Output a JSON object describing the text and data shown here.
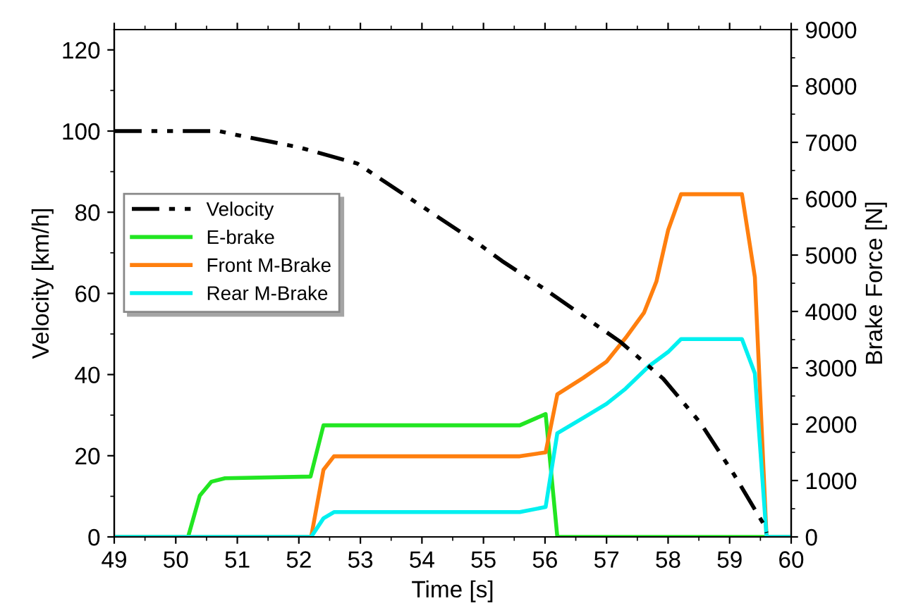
{
  "chart_data": {
    "type": "line",
    "xlabel": "Time [s]",
    "ylabel": "Velocity [km/h]",
    "y2label": "Brake Force [N]",
    "xlim": [
      49,
      60
    ],
    "xticks": [
      49,
      50,
      51,
      52,
      53,
      54,
      55,
      56,
      57,
      58,
      59,
      60
    ],
    "ylim": [
      0,
      125
    ],
    "yticks": [
      0,
      20,
      40,
      60,
      80,
      100,
      120
    ],
    "y2lim": [
      0,
      9000
    ],
    "y2ticks": [
      0,
      1000,
      2000,
      3000,
      4000,
      5000,
      6000,
      7000,
      8000,
      9000
    ],
    "grid": false,
    "legend": "left",
    "series": [
      {
        "name": "Velocity",
        "color": "#000000",
        "line_style": "dashdotdot",
        "x": [
          49,
          50.7,
          51,
          52,
          52.95,
          54.94,
          55.3,
          56,
          57.23,
          57.92,
          58.53,
          59.07,
          59.57,
          59.6
        ],
        "values": [
          100,
          100,
          99,
          96,
          92,
          72,
          68,
          61,
          48,
          39,
          28,
          15.4,
          2.7,
          1
        ]
      },
      {
        "name": "E-brake",
        "color": "#22e622",
        "axis": "y2",
        "x": [
          49,
          50.2,
          50.39,
          50.58,
          50.8,
          52.19,
          52.4,
          55.59,
          56.01,
          56.2,
          60
        ],
        "values": [
          0,
          0,
          730,
          980,
          1040,
          1070,
          1980,
          1980,
          2180,
          0,
          0
        ]
      },
      {
        "name": "Front M-Brake",
        "color": "#ff7f0e",
        "axis": "y2",
        "x": [
          49,
          52.2,
          52.4,
          52.57,
          55.59,
          56.01,
          56.2,
          56.62,
          57.0,
          57.31,
          57.61,
          57.81,
          58.0,
          58.21,
          59.2,
          59.41,
          59.6,
          60
        ],
        "values": [
          0,
          0,
          1190,
          1430,
          1430,
          1500,
          2530,
          2820,
          3110,
          3530,
          3980,
          4530,
          5440,
          6080,
          6080,
          4610,
          0,
          0
        ]
      },
      {
        "name": "Rear M-Brake",
        "color": "#00f0f0",
        "axis": "y2",
        "x": [
          49,
          52.2,
          52.4,
          52.57,
          55.59,
          56.01,
          56.2,
          56.62,
          57.0,
          57.31,
          57.69,
          58.0,
          58.21,
          59.2,
          59.41,
          59.6,
          60
        ],
        "values": [
          0,
          0,
          330,
          440,
          440,
          530,
          1840,
          2110,
          2360,
          2630,
          3030,
          3280,
          3510,
          3510,
          2900,
          0,
          0
        ]
      }
    ]
  }
}
